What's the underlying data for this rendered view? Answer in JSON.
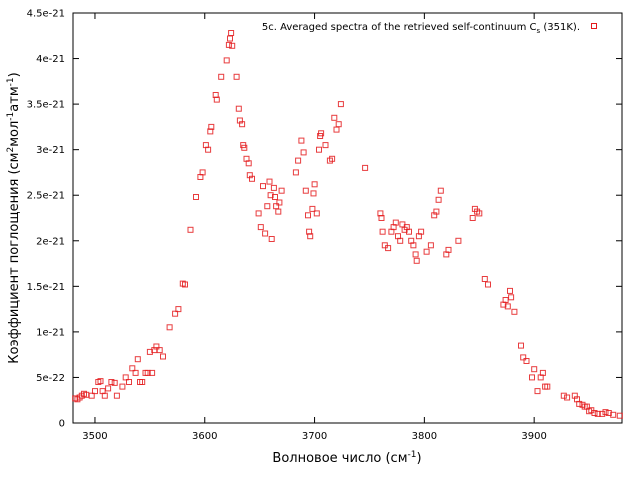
{
  "chart_data": {
    "type": "scatter",
    "xlabel": "Волновое число (см",
    "xlabel_sup": "-1",
    "xlabel_end": ")",
    "ylabel_parts": [
      "Коэффициент поглощения (см",
      "2",
      "мол",
      "-1",
      "атм",
      "-1",
      ")"
    ],
    "xlim": [
      3480,
      3980
    ],
    "ylim": [
      0,
      4.5e-21
    ],
    "x_ticks": [
      3500,
      3600,
      3700,
      3800,
      3900
    ],
    "y_ticks": [
      0,
      5e-22,
      1e-21,
      1.5e-21,
      2e-21,
      2.5e-21,
      3e-21,
      3.5e-21,
      4e-21,
      4.5e-21
    ],
    "y_tick_labels": [
      "0",
      "5e-22",
      "1e-21",
      "1.5e-21",
      "2e-21",
      "2.5e-21",
      "3e-21",
      "3.5e-21",
      "4e-21",
      "4.5e-21"
    ],
    "legend_position": "top-right",
    "grid": false,
    "series": [
      {
        "legend_main": "5c. Averaged spectra of the retrieved self-continuum C",
        "legend_sub": "s",
        "legend_end": " (351K).",
        "color": "#e41a1c",
        "marker": "open-square",
        "points": [
          [
            3482,
            2.7e-22
          ],
          [
            3484,
            2.6e-22
          ],
          [
            3486,
            2.8e-22
          ],
          [
            3488,
            3e-22
          ],
          [
            3490,
            3.2e-22
          ],
          [
            3492,
            3.1e-22
          ],
          [
            3497,
            3e-22
          ],
          [
            3500,
            3.5e-22
          ],
          [
            3503,
            4.5e-22
          ],
          [
            3505,
            4.6e-22
          ],
          [
            3507,
            3.5e-22
          ],
          [
            3509,
            3e-22
          ],
          [
            3512,
            3.8e-22
          ],
          [
            3515,
            4.5e-22
          ],
          [
            3518,
            4.4e-22
          ],
          [
            3520,
            3e-22
          ],
          [
            3525,
            4e-22
          ],
          [
            3528,
            5e-22
          ],
          [
            3531,
            4.5e-22
          ],
          [
            3534,
            6e-22
          ],
          [
            3537,
            5.5e-22
          ],
          [
            3539,
            7e-22
          ],
          [
            3541,
            4.5e-22
          ],
          [
            3543,
            4.5e-22
          ],
          [
            3546,
            5.5e-22
          ],
          [
            3548,
            5.5e-22
          ],
          [
            3550,
            7.8e-22
          ],
          [
            3552,
            5.5e-22
          ],
          [
            3554,
            8e-22
          ],
          [
            3556,
            8.4e-22
          ],
          [
            3559,
            8e-22
          ],
          [
            3562,
            7.3e-22
          ],
          [
            3568,
            1.05e-21
          ],
          [
            3573,
            1.2e-21
          ],
          [
            3576,
            1.25e-21
          ],
          [
            3580,
            1.53e-21
          ],
          [
            3582,
            1.52e-21
          ],
          [
            3587,
            2.12e-21
          ],
          [
            3592,
            2.48e-21
          ],
          [
            3596,
            2.7e-21
          ],
          [
            3598,
            2.75e-21
          ],
          [
            3601,
            3.05e-21
          ],
          [
            3603,
            3e-21
          ],
          [
            3605,
            3.2e-21
          ],
          [
            3606,
            3.25e-21
          ],
          [
            3610,
            3.6e-21
          ],
          [
            3611,
            3.55e-21
          ],
          [
            3615,
            3.8e-21
          ],
          [
            3620,
            3.98e-21
          ],
          [
            3622,
            4.15e-21
          ],
          [
            3623,
            4.22e-21
          ],
          [
            3624,
            4.28e-21
          ],
          [
            3625,
            4.14e-21
          ],
          [
            3629,
            3.8e-21
          ],
          [
            3631,
            3.45e-21
          ],
          [
            3632,
            3.32e-21
          ],
          [
            3634,
            3.28e-21
          ],
          [
            3635,
            3.05e-21
          ],
          [
            3636,
            3.02e-21
          ],
          [
            3638,
            2.9e-21
          ],
          [
            3640,
            2.85e-21
          ],
          [
            3641,
            2.72e-21
          ],
          [
            3643,
            2.68e-21
          ],
          [
            3649,
            2.3e-21
          ],
          [
            3651,
            2.15e-21
          ],
          [
            3653,
            2.6e-21
          ],
          [
            3655,
            2.08e-21
          ],
          [
            3657,
            2.38e-21
          ],
          [
            3659,
            2.65e-21
          ],
          [
            3660,
            2.5e-21
          ],
          [
            3661,
            2.02e-21
          ],
          [
            3663,
            2.58e-21
          ],
          [
            3664,
            2.48e-21
          ],
          [
            3665,
            2.38e-21
          ],
          [
            3667,
            2.32e-21
          ],
          [
            3668,
            2.42e-21
          ],
          [
            3670,
            2.55e-21
          ],
          [
            3683,
            2.75e-21
          ],
          [
            3685,
            2.88e-21
          ],
          [
            3688,
            3.1e-21
          ],
          [
            3690,
            2.97e-21
          ],
          [
            3692,
            2.55e-21
          ],
          [
            3694,
            2.28e-21
          ],
          [
            3695,
            2.1e-21
          ],
          [
            3696,
            2.05e-21
          ],
          [
            3698,
            2.35e-21
          ],
          [
            3699,
            2.52e-21
          ],
          [
            3700,
            2.62e-21
          ],
          [
            3702,
            2.3e-21
          ],
          [
            3704,
            3e-21
          ],
          [
            3705,
            3.15e-21
          ],
          [
            3706,
            3.18e-21
          ],
          [
            3710,
            3.05e-21
          ],
          [
            3714,
            2.88e-21
          ],
          [
            3716,
            2.9e-21
          ],
          [
            3718,
            3.35e-21
          ],
          [
            3720,
            3.22e-21
          ],
          [
            3722,
            3.28e-21
          ],
          [
            3724,
            3.5e-21
          ],
          [
            3746,
            2.8e-21
          ],
          [
            3760,
            2.3e-21
          ],
          [
            3761,
            2.25e-21
          ],
          [
            3762,
            2.1e-21
          ],
          [
            3764,
            1.95e-21
          ],
          [
            3767,
            1.92e-21
          ],
          [
            3770,
            2.1e-21
          ],
          [
            3772,
            2.15e-21
          ],
          [
            3774,
            2.2e-21
          ],
          [
            3776,
            2.05e-21
          ],
          [
            3778,
            2e-21
          ],
          [
            3780,
            2.18e-21
          ],
          [
            3782,
            2.12e-21
          ],
          [
            3784,
            2.15e-21
          ],
          [
            3786,
            2.1e-21
          ],
          [
            3788,
            2e-21
          ],
          [
            3790,
            1.95e-21
          ],
          [
            3792,
            1.85e-21
          ],
          [
            3793,
            1.78e-21
          ],
          [
            3795,
            2.05e-21
          ],
          [
            3797,
            2.1e-21
          ],
          [
            3802,
            1.88e-21
          ],
          [
            3806,
            1.95e-21
          ],
          [
            3809,
            2.28e-21
          ],
          [
            3811,
            2.32e-21
          ],
          [
            3813,
            2.45e-21
          ],
          [
            3815,
            2.55e-21
          ],
          [
            3820,
            1.85e-21
          ],
          [
            3822,
            1.9e-21
          ],
          [
            3831,
            2e-21
          ],
          [
            3844,
            2.25e-21
          ],
          [
            3846,
            2.35e-21
          ],
          [
            3848,
            2.32e-21
          ],
          [
            3850,
            2.3e-21
          ],
          [
            3855,
            1.58e-21
          ],
          [
            3858,
            1.52e-21
          ],
          [
            3872,
            1.3e-21
          ],
          [
            3874,
            1.35e-21
          ],
          [
            3876,
            1.28e-21
          ],
          [
            3878,
            1.45e-21
          ],
          [
            3879,
            1.38e-21
          ],
          [
            3882,
            1.22e-21
          ],
          [
            3888,
            8.5e-22
          ],
          [
            3890,
            7.2e-22
          ],
          [
            3893,
            6.8e-22
          ],
          [
            3898,
            5e-22
          ],
          [
            3900,
            5.9e-22
          ],
          [
            3903,
            3.5e-22
          ],
          [
            3906,
            5e-22
          ],
          [
            3908,
            5.5e-22
          ],
          [
            3910,
            4e-22
          ],
          [
            3912,
            4e-22
          ],
          [
            3927,
            3e-22
          ],
          [
            3930,
            2.8e-22
          ],
          [
            3937,
            3e-22
          ],
          [
            3939,
            2.6e-22
          ],
          [
            3941,
            2.1e-22
          ],
          [
            3944,
            2e-22
          ],
          [
            3946,
            1.8e-22
          ],
          [
            3948,
            1.8e-22
          ],
          [
            3950,
            1.3e-22
          ],
          [
            3952,
            1.4e-22
          ],
          [
            3955,
            1.1e-22
          ],
          [
            3958,
            1e-22
          ],
          [
            3962,
            1e-22
          ],
          [
            3965,
            1.2e-22
          ],
          [
            3968,
            1.1e-22
          ],
          [
            3972,
            9e-23
          ],
          [
            3978,
            8e-23
          ]
        ]
      }
    ]
  }
}
